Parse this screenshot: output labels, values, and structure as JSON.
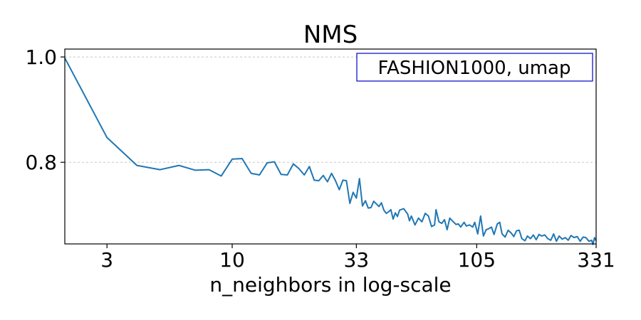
{
  "chart_data": {
    "type": "line",
    "title": "NMS",
    "xlabel": "n_neighbors in log-scale",
    "ylabel": "",
    "x_scale": "log",
    "xlim": [
      2,
      331
    ],
    "ylim": [
      0.645,
      1.015
    ],
    "grid": "horizontal dashed at y ticks",
    "legend_placement": "top-right",
    "legend_box_color": "#0000cc",
    "line_color": "#1f77b4",
    "annotation": "FASHION1000, umap",
    "x_ticks": [
      3,
      10,
      33,
      105,
      331
    ],
    "x_tick_labels": [
      "3",
      "10",
      "33",
      "105",
      "331"
    ],
    "y_ticks": [
      1.0,
      0.8
    ],
    "y_tick_labels": [
      "1.0",
      "0.8"
    ],
    "series": [
      {
        "points": [
          [
            2,
            0.998
          ],
          [
            3,
            0.847
          ],
          [
            4,
            0.794
          ],
          [
            5,
            0.786
          ],
          [
            6,
            0.794
          ],
          [
            7,
            0.785
          ],
          [
            8,
            0.786
          ],
          [
            9,
            0.774
          ],
          [
            10,
            0.806
          ],
          [
            11,
            0.807
          ],
          [
            12,
            0.779
          ],
          [
            13,
            0.776
          ],
          [
            14,
            0.799
          ],
          [
            15,
            0.801
          ],
          [
            16,
            0.777
          ],
          [
            17,
            0.776
          ],
          [
            18,
            0.797
          ],
          [
            19,
            0.788
          ],
          [
            20,
            0.776
          ],
          [
            21,
            0.792
          ],
          [
            22,
            0.766
          ],
          [
            23,
            0.765
          ],
          [
            24,
            0.775
          ],
          [
            25,
            0.763
          ],
          [
            26,
            0.779
          ],
          [
            27,
            0.765
          ],
          [
            28,
            0.748
          ],
          [
            29,
            0.766
          ],
          [
            30,
            0.765
          ],
          [
            31,
            0.722
          ],
          [
            32,
            0.743
          ],
          [
            33,
            0.732
          ],
          [
            34,
            0.769
          ],
          [
            35,
            0.717
          ],
          [
            36,
            0.727
          ],
          [
            37,
            0.713
          ],
          [
            38,
            0.714
          ],
          [
            39,
            0.726
          ],
          [
            40,
            0.721
          ],
          [
            41,
            0.716
          ],
          [
            42,
            0.723
          ],
          [
            43,
            0.709
          ],
          [
            44,
            0.703
          ],
          [
            45,
            0.706
          ],
          [
            46,
            0.71
          ],
          [
            47,
            0.692
          ],
          [
            48,
            0.704
          ],
          [
            49,
            0.697
          ],
          [
            50,
            0.709
          ],
          [
            52,
            0.712
          ],
          [
            54,
            0.702
          ],
          [
            55,
            0.689
          ],
          [
            56,
            0.698
          ],
          [
            58,
            0.681
          ],
          [
            60,
            0.694
          ],
          [
            62,
            0.687
          ],
          [
            64,
            0.703
          ],
          [
            66,
            0.698
          ],
          [
            68,
            0.678
          ],
          [
            70,
            0.681
          ],
          [
            71,
            0.71
          ],
          [
            73,
            0.687
          ],
          [
            75,
            0.684
          ],
          [
            77,
            0.691
          ],
          [
            79,
            0.672
          ],
          [
            81,
            0.694
          ],
          [
            83,
            0.689
          ],
          [
            86,
            0.682
          ],
          [
            88,
            0.683
          ],
          [
            90,
            0.677
          ],
          [
            93,
            0.686
          ],
          [
            95,
            0.679
          ],
          [
            98,
            0.681
          ],
          [
            101,
            0.677
          ],
          [
            103,
            0.686
          ],
          [
            106,
            0.664
          ],
          [
            109,
            0.698
          ],
          [
            112,
            0.66
          ],
          [
            115,
            0.672
          ],
          [
            118,
            0.674
          ],
          [
            121,
            0.677
          ],
          [
            124,
            0.663
          ],
          [
            128,
            0.683
          ],
          [
            131,
            0.686
          ],
          [
            134,
            0.664
          ],
          [
            138,
            0.658
          ],
          [
            142,
            0.671
          ],
          [
            146,
            0.666
          ],
          [
            150,
            0.659
          ],
          [
            154,
            0.67
          ],
          [
            158,
            0.671
          ],
          [
            162,
            0.655
          ],
          [
            167,
            0.651
          ],
          [
            171,
            0.66
          ],
          [
            176,
            0.655
          ],
          [
            181,
            0.662
          ],
          [
            186,
            0.653
          ],
          [
            191,
            0.663
          ],
          [
            196,
            0.66
          ],
          [
            202,
            0.662
          ],
          [
            208,
            0.655
          ],
          [
            214,
            0.652
          ],
          [
            220,
            0.664
          ],
          [
            226,
            0.65
          ],
          [
            232,
            0.66
          ],
          [
            239,
            0.654
          ],
          [
            246,
            0.657
          ],
          [
            253,
            0.652
          ],
          [
            260,
            0.661
          ],
          [
            268,
            0.657
          ],
          [
            276,
            0.659
          ],
          [
            284,
            0.65
          ],
          [
            292,
            0.658
          ],
          [
            300,
            0.657
          ],
          [
            309,
            0.65
          ],
          [
            317,
            0.652
          ],
          [
            321,
            0.644
          ],
          [
            326,
            0.657
          ],
          [
            331,
            0.651
          ]
        ]
      }
    ]
  }
}
